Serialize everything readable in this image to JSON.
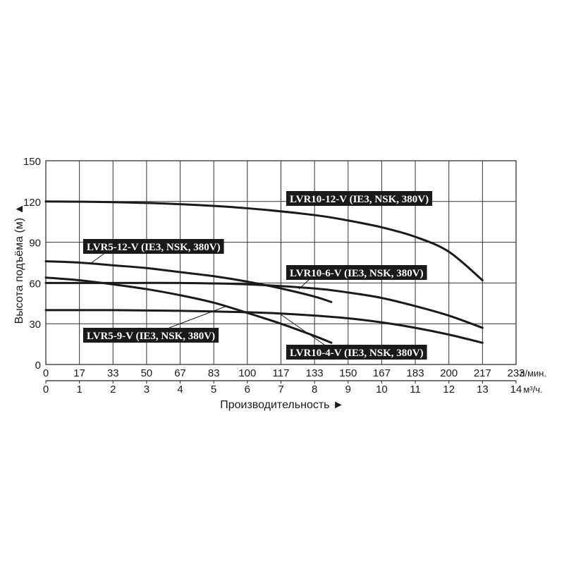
{
  "chart_data": {
    "type": "line",
    "title": "",
    "xlabel": "Производительность ►",
    "ylabel": "Высота подъёма (м) ▲",
    "x_units_m3h": "м³/ч.",
    "x_units_lmin": "л/мин.",
    "xlim": [
      0,
      14
    ],
    "ylim": [
      0,
      150
    ],
    "y_ticks": [
      "0",
      "30",
      "60",
      "90",
      "120",
      "150"
    ],
    "x_ticks_m3h": [
      "0",
      "1",
      "2",
      "3",
      "4",
      "5",
      "6",
      "7",
      "8",
      "9",
      "10",
      "11",
      "12",
      "13",
      "14"
    ],
    "x_ticks_lmin": [
      "0",
      "17",
      "33",
      "50",
      "67",
      "83",
      "100",
      "117",
      "133",
      "150",
      "167",
      "183",
      "200",
      "217",
      "233"
    ],
    "grid": true,
    "series": [
      {
        "name": "LVR10-12-V (IE3, NSK, 380V)",
        "x": [
          0,
          2,
          4,
          6,
          8,
          9,
          10,
          11,
          12,
          13
        ],
        "y": [
          120,
          119.5,
          118,
          115,
          110,
          106,
          101,
          94,
          83,
          62
        ]
      },
      {
        "name": "LVR5-12-V (IE3, NSK, 380V)",
        "x": [
          0,
          1,
          2,
          3,
          4,
          5,
          6,
          7,
          8,
          8.5
        ],
        "y": [
          76,
          75,
          73,
          71,
          68,
          65,
          61,
          56,
          50,
          46
        ]
      },
      {
        "name": "LVR10-6-V (IE3, NSK, 380V)",
        "x": [
          0,
          2,
          4,
          6,
          8,
          9,
          10,
          11,
          12,
          13
        ],
        "y": [
          60,
          60,
          60,
          59,
          56,
          53,
          49,
          43,
          36,
          27
        ]
      },
      {
        "name": "LVR5-9-V (IE3, NSK, 380V)",
        "x": [
          0,
          1,
          2,
          3,
          4,
          5,
          6,
          7,
          8,
          8.5
        ],
        "y": [
          64,
          62,
          59,
          55.5,
          51,
          45.5,
          38,
          30,
          21,
          16
        ]
      },
      {
        "name": "LVR10-4-V (IE3, NSK, 380V)",
        "x": [
          0,
          2,
          4,
          6,
          7,
          8,
          9,
          10,
          11,
          12,
          13
        ],
        "y": [
          40,
          40,
          39.5,
          38.5,
          37.5,
          36,
          34,
          31,
          27,
          22,
          16
        ]
      }
    ]
  }
}
